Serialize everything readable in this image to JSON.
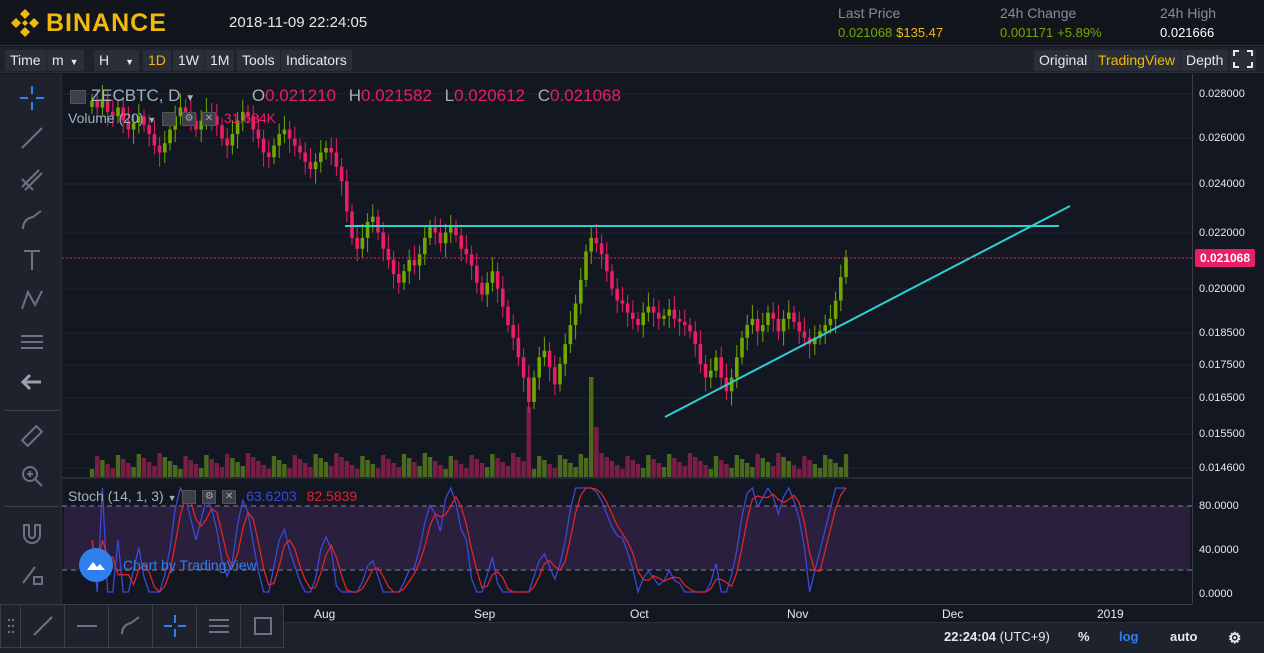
{
  "header": {
    "brand": "BINANCE",
    "datetime": "2018-11-09 22:24:05",
    "last_price_label": "Last Price",
    "last_price_btc": "0.021068",
    "last_price_usd": "$135.47",
    "change_label": "24h Change",
    "change_value": "0.001171",
    "change_pct": "+5.89%",
    "high_label": "24h High",
    "high_value": "0.021666"
  },
  "toolbar": {
    "time": "Time",
    "minutes": "m",
    "hours": "H",
    "d1": "1D",
    "w1": "1W",
    "m1": "1M",
    "tools": "Tools",
    "indicators": "Indicators",
    "original": "Original",
    "tradingview": "TradingView",
    "depth": "Depth"
  },
  "legend": {
    "symbol": "ZECBTC, D",
    "o_label": "O",
    "o_value": "0.021210",
    "h_label": "H",
    "h_value": "0.021582",
    "l_label": "L",
    "l_value": "0.020612",
    "c_label": "C",
    "c_value": "0.021068",
    "volume": "Volume (20)",
    "volume_value": "31.684K",
    "stoch": "Stoch (14, 1, 3)",
    "stoch_k": "63.6203",
    "stoch_d": "82.5839"
  },
  "watermark": "Chart by TradingView",
  "price_axis": {
    "labels": [
      "0.028000",
      "0.026000",
      "0.024000",
      "0.022000",
      "0.020000",
      "0.018500",
      "0.017500",
      "0.016500",
      "0.015500",
      "0.014600"
    ],
    "last_tag": "0.021068",
    "stoch_labels": [
      "80.0000",
      "40.0000",
      "0.0000"
    ]
  },
  "time_axis": {
    "labels": [
      "Aug",
      "Sep",
      "Oct",
      "Nov",
      "Dec",
      "2019"
    ]
  },
  "bottombar": {
    "clock": "22:24:04",
    "tz": "(UTC+9)",
    "percent": "%",
    "log": "log",
    "auto": "auto"
  },
  "colors": {
    "up": "#70a800",
    "down": "#e91e63",
    "trendline": "#2ed1d1",
    "stoch_k": "#3b49d8",
    "stoch_d": "#e0232a"
  },
  "chart_data": {
    "type": "candlestick",
    "symbol": "ZECBTC",
    "interval": "D",
    "ylim": [
      0.0146,
      0.0285
    ],
    "x_range": [
      "2018-07-01",
      "2019-01-20"
    ],
    "scale": "log",
    "closes": [
      0.0275,
      0.0272,
      0.0276,
      0.027,
      0.0268,
      0.0272,
      0.0266,
      0.0262,
      0.0265,
      0.0268,
      0.0264,
      0.026,
      0.0255,
      0.0252,
      0.0256,
      0.0262,
      0.0268,
      0.0272,
      0.027,
      0.0266,
      0.0262,
      0.0266,
      0.027,
      0.0268,
      0.0264,
      0.0258,
      0.0255,
      0.026,
      0.0266,
      0.027,
      0.0268,
      0.0262,
      0.0258,
      0.0252,
      0.025,
      0.0255,
      0.026,
      0.0262,
      0.0258,
      0.0255,
      0.0252,
      0.0248,
      0.0245,
      0.0248,
      0.0252,
      0.0254,
      0.0252,
      0.0246,
      0.024,
      0.0228,
      0.0218,
      0.0214,
      0.0218,
      0.0224,
      0.0226,
      0.022,
      0.0214,
      0.021,
      0.0205,
      0.0202,
      0.0206,
      0.021,
      0.0208,
      0.0212,
      0.0218,
      0.0222,
      0.022,
      0.0216,
      0.022,
      0.0222,
      0.0219,
      0.0214,
      0.0212,
      0.0208,
      0.0202,
      0.0198,
      0.0202,
      0.0206,
      0.02,
      0.0194,
      0.0188,
      0.0184,
      0.0178,
      0.0172,
      0.0165,
      0.0172,
      0.0178,
      0.018,
      0.0175,
      0.017,
      0.0176,
      0.0182,
      0.0188,
      0.0195,
      0.0203,
      0.0213,
      0.0218,
      0.0216,
      0.0212,
      0.0206,
      0.02,
      0.0196,
      0.0195,
      0.0192,
      0.019,
      0.0188,
      0.0192,
      0.0194,
      0.0192,
      0.019,
      0.0191,
      0.0193,
      0.019,
      0.0189,
      0.0188,
      0.0186,
      0.0182,
      0.0176,
      0.0172,
      0.0174,
      0.0178,
      0.0172,
      0.0168,
      0.0172,
      0.0178,
      0.0184,
      0.0188,
      0.019,
      0.0186,
      0.0188,
      0.0192,
      0.019,
      0.0186,
      0.019,
      0.0192,
      0.0189,
      0.0186,
      0.0184,
      0.0182,
      0.0184,
      0.0186,
      0.0188,
      0.019,
      0.0196,
      0.0204,
      0.0211
    ]
  }
}
